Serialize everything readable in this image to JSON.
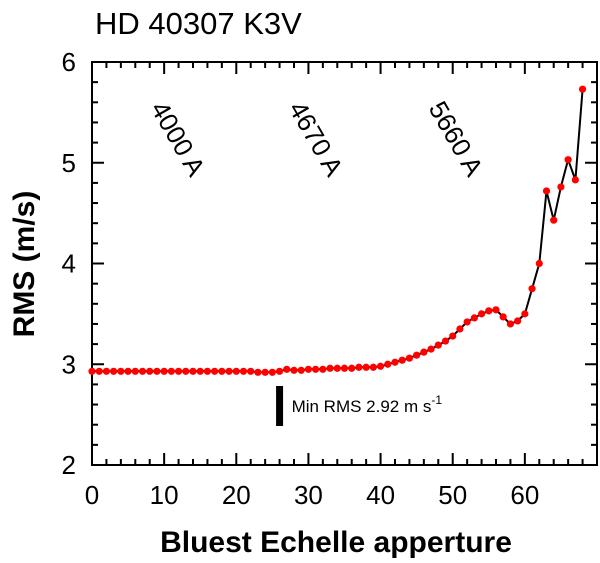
{
  "chart_data": {
    "type": "scatter",
    "title": "HD 40307 K3V",
    "xlabel": "Bluest Echelle apperture",
    "ylabel": "RMS (m/s)",
    "xlim": [
      0,
      70
    ],
    "ylim": [
      2,
      6
    ],
    "x_ticks": [
      "0",
      "10",
      "20",
      "30",
      "40",
      "50",
      "60"
    ],
    "y_ticks": [
      "2",
      "3",
      "4",
      "5",
      "6"
    ],
    "grid": false,
    "marker_color": "#ff0000",
    "line_color": "#000000",
    "series": [
      {
        "x": [
          0,
          1,
          2,
          3,
          4,
          5,
          6,
          7,
          8,
          9,
          10,
          11,
          12,
          13,
          14,
          15,
          16,
          17,
          18,
          19,
          20,
          21,
          22,
          23,
          24,
          25,
          26,
          27,
          28,
          29,
          30,
          31,
          32,
          33,
          34,
          35,
          36,
          37,
          38,
          39,
          40,
          41,
          42,
          43,
          44,
          45,
          46,
          47,
          48,
          49,
          50,
          51,
          52,
          53,
          54,
          55,
          56,
          57,
          58,
          59,
          60,
          61,
          62,
          63,
          64,
          65,
          66,
          67,
          68
        ],
        "y": [
          2.93,
          2.93,
          2.93,
          2.93,
          2.93,
          2.93,
          2.93,
          2.93,
          2.93,
          2.93,
          2.93,
          2.93,
          2.93,
          2.93,
          2.93,
          2.93,
          2.93,
          2.93,
          2.93,
          2.93,
          2.93,
          2.93,
          2.93,
          2.92,
          2.92,
          2.92,
          2.93,
          2.95,
          2.94,
          2.94,
          2.95,
          2.95,
          2.95,
          2.96,
          2.96,
          2.96,
          2.96,
          2.97,
          2.97,
          2.97,
          2.98,
          3.0,
          3.02,
          3.04,
          3.06,
          3.09,
          3.12,
          3.15,
          3.19,
          3.23,
          3.28,
          3.35,
          3.42,
          3.46,
          3.5,
          3.53,
          3.54,
          3.47,
          3.4,
          3.43,
          3.5,
          3.75,
          4.0,
          4.72,
          4.43,
          4.76,
          5.03,
          4.83,
          5.73
        ]
      }
    ],
    "annotations": {
      "wavelength_labels": [
        "4000 A",
        "4670 A",
        "5660 A"
      ],
      "min_rms_text": "Min RMS 2.92 m s",
      "min_rms_unit_exponent": "-1",
      "min_rms_marker_x": 26
    }
  }
}
